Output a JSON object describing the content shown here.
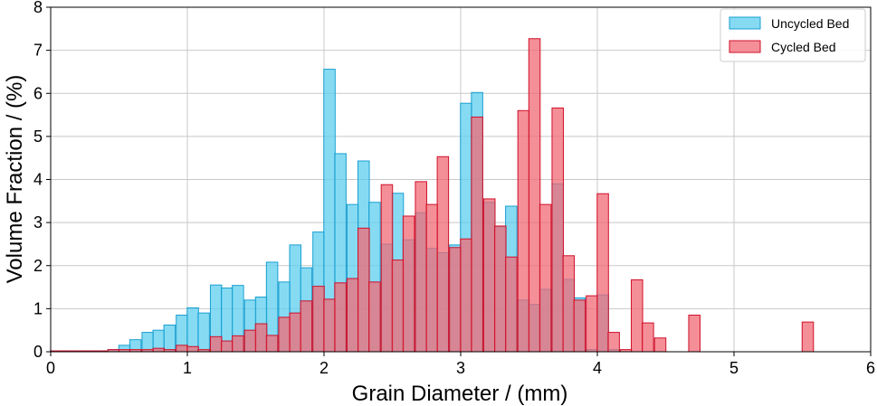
{
  "chart_data": {
    "type": "bar",
    "xlabel": "Grain Diameter / (mm)",
    "ylabel": "Volume Fraction / (%)",
    "xlim": [
      0,
      6
    ],
    "ylim": [
      0,
      8
    ],
    "xticks": [
      "0",
      "1",
      "2",
      "3",
      "4",
      "5",
      "6"
    ],
    "yticks": [
      "0",
      "1",
      "2",
      "3",
      "4",
      "5",
      "6",
      "7",
      "8"
    ],
    "grid": true,
    "legend_position": "top-right",
    "bin_width": 0.083,
    "series": [
      {
        "name": "Uncycled Bed",
        "fill": "#5ecfef",
        "stroke": "#1a9fd0",
        "x": [
          0.04,
          0.12,
          0.21,
          0.29,
          0.37,
          0.46,
          0.54,
          0.62,
          0.71,
          0.79,
          0.87,
          0.96,
          1.04,
          1.12,
          1.21,
          1.29,
          1.37,
          1.46,
          1.54,
          1.62,
          1.71,
          1.79,
          1.87,
          1.96,
          2.04,
          2.12,
          2.21,
          2.29,
          2.37,
          2.46,
          2.54,
          2.62,
          2.71,
          2.79,
          2.87,
          2.96,
          3.04,
          3.12,
          3.21,
          3.29,
          3.37,
          3.46,
          3.54,
          3.62,
          3.71,
          3.79,
          3.87,
          3.96,
          4.04,
          4.12
        ],
        "values": [
          0.02,
          0.02,
          0.02,
          0.02,
          0.02,
          0.05,
          0.15,
          0.28,
          0.45,
          0.5,
          0.62,
          0.85,
          1.02,
          0.9,
          1.55,
          1.48,
          1.54,
          1.2,
          1.27,
          2.08,
          1.62,
          2.48,
          1.95,
          2.78,
          6.56,
          4.6,
          3.42,
          4.43,
          3.47,
          2.5,
          3.68,
          2.6,
          3.23,
          2.4,
          2.3,
          2.48,
          5.77,
          6.02,
          3.47,
          2.9,
          3.38,
          1.2,
          1.1,
          1.45,
          3.9,
          1.68,
          1.25,
          0.05,
          1.32,
          0.05
        ]
      },
      {
        "name": "Cycled Bed",
        "fill": "#f06a76",
        "stroke": "#d0102a",
        "x": [
          0.04,
          0.12,
          0.21,
          0.29,
          0.37,
          0.46,
          0.54,
          0.62,
          0.71,
          0.79,
          0.87,
          0.96,
          1.04,
          1.12,
          1.21,
          1.29,
          1.37,
          1.46,
          1.54,
          1.62,
          1.71,
          1.79,
          1.87,
          1.96,
          2.04,
          2.12,
          2.21,
          2.29,
          2.37,
          2.46,
          2.54,
          2.62,
          2.71,
          2.79,
          2.87,
          2.96,
          3.04,
          3.12,
          3.21,
          3.29,
          3.37,
          3.46,
          3.54,
          3.62,
          3.71,
          3.79,
          3.87,
          3.96,
          4.04,
          4.12,
          4.21,
          4.29,
          4.37,
          4.46,
          4.71,
          5.54
        ],
        "values": [
          0.02,
          0.02,
          0.02,
          0.02,
          0.02,
          0.05,
          0.05,
          0.05,
          0.05,
          0.08,
          0.05,
          0.15,
          0.12,
          0.05,
          0.35,
          0.25,
          0.37,
          0.5,
          0.65,
          0.38,
          0.8,
          0.9,
          1.18,
          1.52,
          1.22,
          1.6,
          1.7,
          2.87,
          1.62,
          3.88,
          2.13,
          3.15,
          3.95,
          3.42,
          4.53,
          2.42,
          2.62,
          5.45,
          3.55,
          2.92,
          2.2,
          5.6,
          7.27,
          3.42,
          5.66,
          2.23,
          1.2,
          1.3,
          3.67,
          0.45,
          0.05,
          1.67,
          0.67,
          0.32,
          0.85,
          0.69
        ]
      }
    ]
  }
}
